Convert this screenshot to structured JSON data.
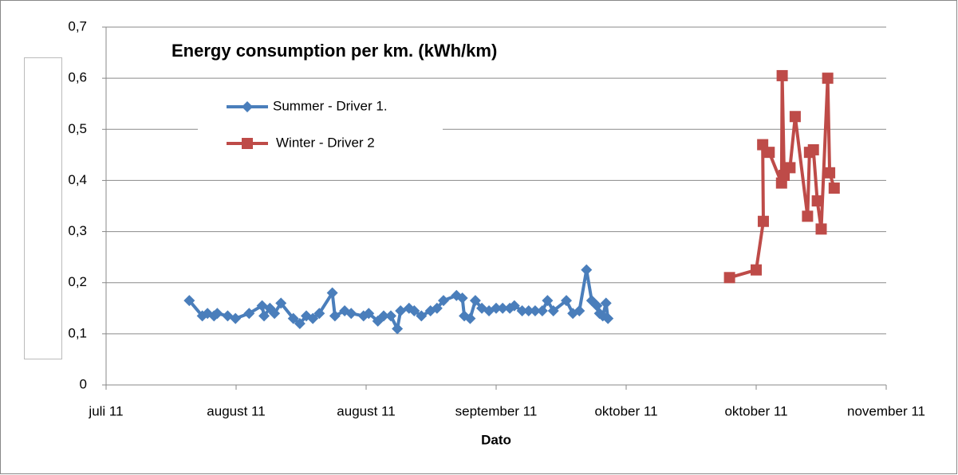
{
  "chart_data": {
    "type": "line",
    "title": "Energy consumption per km. (kWh/km)",
    "x_label": "Dato",
    "xlim": [
      0,
      120
    ],
    "xticks": [
      {
        "value": 0,
        "label": "juli 11"
      },
      {
        "value": 20,
        "label": "august 11"
      },
      {
        "value": 40,
        "label": "august 11"
      },
      {
        "value": 60,
        "label": "september 11"
      },
      {
        "value": 80,
        "label": "oktober 11"
      },
      {
        "value": 100,
        "label": "oktober 11"
      },
      {
        "value": 120,
        "label": "november 11"
      }
    ],
    "ylim": [
      0,
      0.7
    ],
    "yticks": [
      0,
      {
        "value": 0.1,
        "label": "0,1"
      },
      {
        "value": 0.2,
        "label": "0,2"
      },
      {
        "value": 0.3,
        "label": "0,3"
      },
      {
        "value": 0.4,
        "label": "0,4"
      },
      {
        "value": 0.5,
        "label": "0,5"
      },
      {
        "value": 0.6,
        "label": "0,6"
      },
      {
        "value": 0.7,
        "label": "0,7"
      }
    ],
    "grid": true,
    "series": [
      {
        "name": "Summer - Driver 1.",
        "color": "#4a7ebb",
        "marker": "diamond",
        "x": [
          12.8,
          14.8,
          15.6,
          16.6,
          17.1,
          18.7,
          19.9,
          22.0,
          24.0,
          24.3,
          25.2,
          25.9,
          26.9,
          28.8,
          29.8,
          30.8,
          31.8,
          32.8,
          34.8,
          35.2,
          36.7,
          37.7,
          39.6,
          40.4,
          41.8,
          42.7,
          43.8,
          44.8,
          45.3,
          46.6,
          47.4,
          48.5,
          49.9,
          50.9,
          51.9,
          53.9,
          54.8,
          55.1,
          56.0,
          56.8,
          57.8,
          58.9,
          60.0,
          61.0,
          62.1,
          62.8,
          64.0,
          65.0,
          66.0,
          67.1,
          67.9,
          68.8,
          70.8,
          71.8,
          72.8,
          73.9,
          74.7,
          75.5,
          75.9,
          76.4,
          76.9,
          77.2
        ],
        "values": [
          0.165,
          0.135,
          0.14,
          0.135,
          0.14,
          0.135,
          0.13,
          0.14,
          0.155,
          0.135,
          0.15,
          0.14,
          0.16,
          0.13,
          0.12,
          0.135,
          0.13,
          0.14,
          0.18,
          0.135,
          0.145,
          0.14,
          0.135,
          0.14,
          0.125,
          0.135,
          0.135,
          0.11,
          0.145,
          0.15,
          0.145,
          0.135,
          0.145,
          0.15,
          0.165,
          0.175,
          0.17,
          0.135,
          0.13,
          0.165,
          0.15,
          0.145,
          0.15,
          0.15,
          0.15,
          0.155,
          0.145,
          0.145,
          0.145,
          0.145,
          0.165,
          0.145,
          0.165,
          0.14,
          0.145,
          0.225,
          0.165,
          0.155,
          0.14,
          0.135,
          0.16,
          0.13
        ]
      },
      {
        "name": "Winter - Driver 2",
        "color": "#be4b48",
        "marker": "square",
        "x": [
          95.9,
          100.0,
          101.1,
          101.0,
          102.0,
          103.9,
          104.0,
          104.3,
          105.2,
          106.0,
          107.9,
          108.2,
          108.8,
          109.4,
          110.0,
          111.0,
          111.3,
          112.0
        ],
        "values": [
          0.21,
          0.225,
          0.32,
          0.47,
          0.455,
          0.395,
          0.605,
          0.41,
          0.425,
          0.525,
          0.33,
          0.455,
          0.46,
          0.36,
          0.305,
          0.6,
          0.415,
          0.385
        ]
      }
    ]
  }
}
